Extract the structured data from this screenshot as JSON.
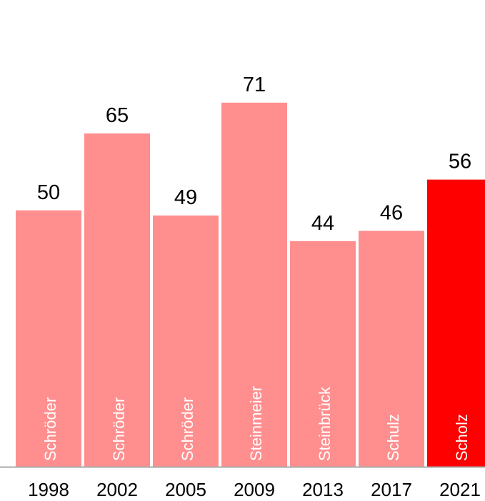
{
  "chart_data": {
    "type": "bar",
    "categories": [
      "1998",
      "2002",
      "2005",
      "2009",
      "2013",
      "2017",
      "2021"
    ],
    "values": [
      50,
      65,
      49,
      71,
      44,
      46,
      56
    ],
    "bar_labels": [
      "Schröder",
      "Schröder",
      "Schröder",
      "Steinmeier",
      "Steinbrück",
      "Schulz",
      "Scholz"
    ],
    "colors": {
      "default_bar": "#ff8f8f",
      "highlight_bar": "#ff0000",
      "axis": "#aaaaaa"
    },
    "highlight_index": 6,
    "ylim": [
      0,
      100
    ],
    "grid": false,
    "title": "",
    "xlabel": "",
    "ylabel": ""
  }
}
